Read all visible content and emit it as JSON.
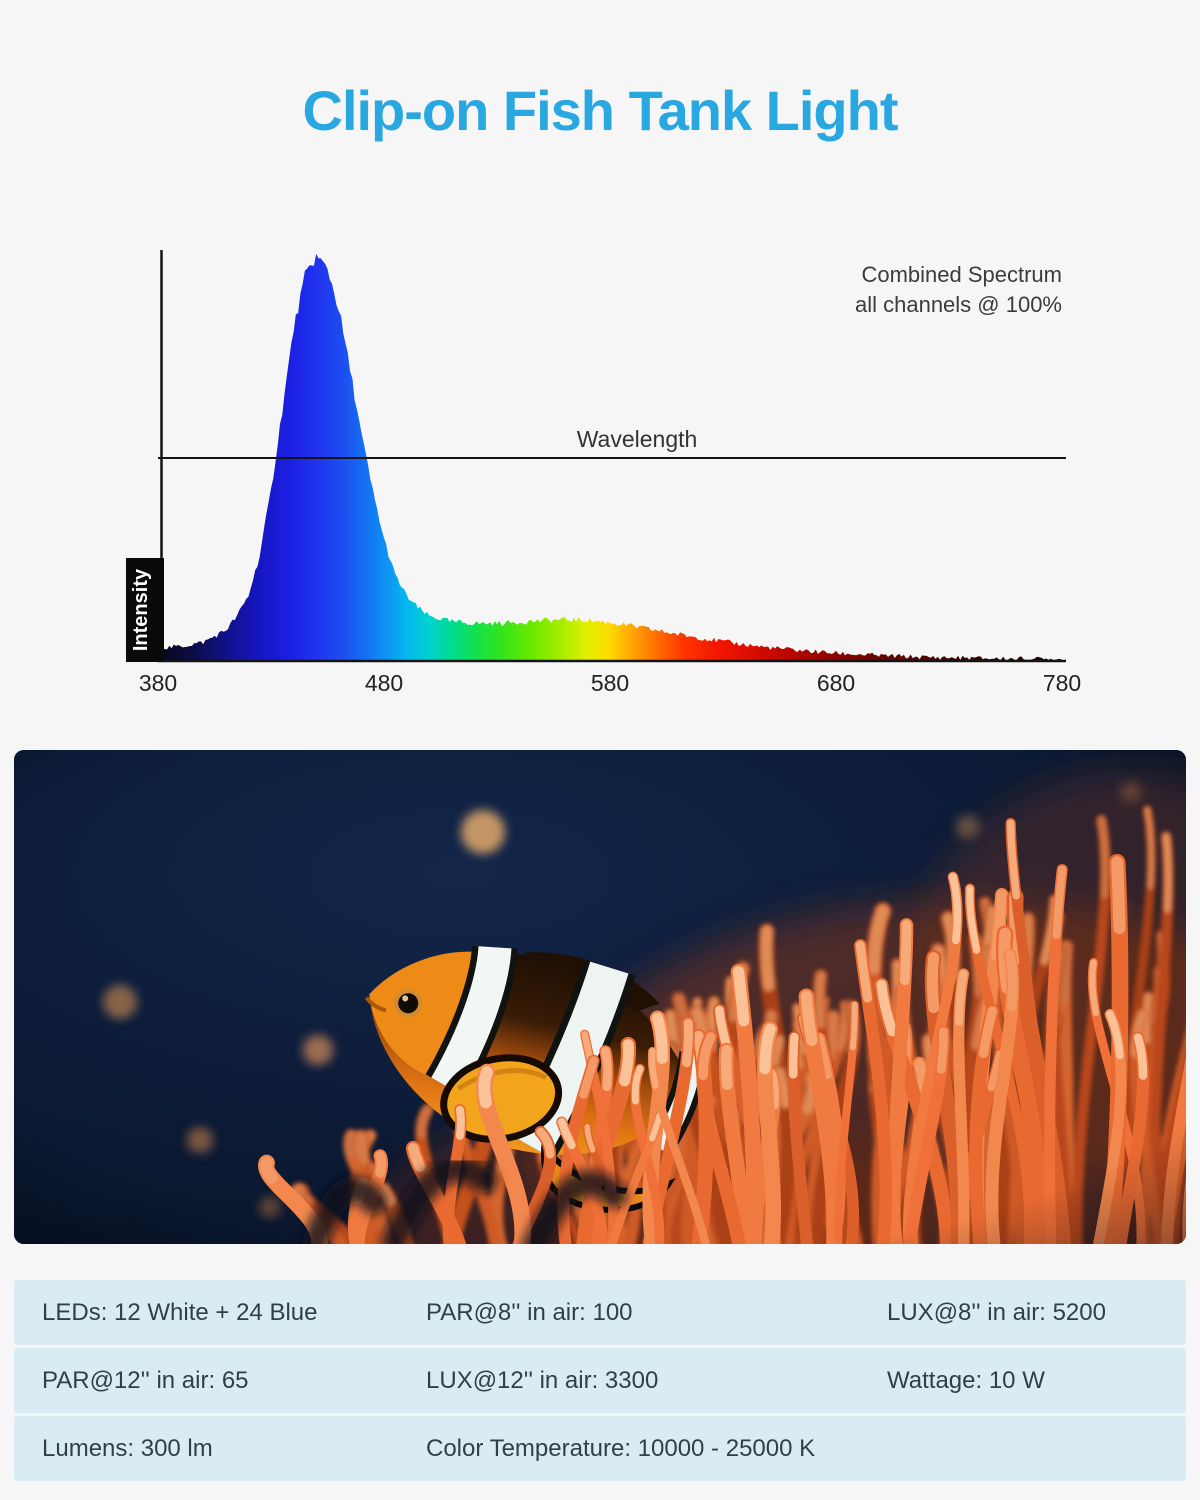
{
  "title": "Clip-on Fish Tank Light",
  "colors": {
    "accent": "#29a7e0",
    "page_bg": "#f6f6f6",
    "axis": "#141414",
    "annotation_text": "#3c3c3c",
    "spec_row_bg": "#d9ecf3",
    "spec_text": "#333e46",
    "photo_bg": "#0c1b36",
    "anemone_orange": "#ef7a41",
    "fish_orange": "#e8821c"
  },
  "chart_data": {
    "type": "area",
    "title": "Combined Spectrum all channels @ 100%",
    "annotation": {
      "line1": "Combined Spectrum",
      "line2": "all channels @ 100%"
    },
    "xlabel": "Wavelength",
    "ylabel": "Intensity",
    "x_ticks": [
      "380",
      "480",
      "580",
      "680",
      "780"
    ],
    "xlim": [
      380,
      780
    ],
    "ylim": [
      0,
      1.05
    ],
    "guide_line_intensity": 0.5,
    "grid": false,
    "legend": "none",
    "series": [
      {
        "name": "Combined spectrum, all channels @ 100%",
        "points": [
          [
            380,
            0.03
          ],
          [
            390,
            0.035
          ],
          [
            400,
            0.045
          ],
          [
            410,
            0.075
          ],
          [
            415,
            0.11
          ],
          [
            420,
            0.16
          ],
          [
            425,
            0.26
          ],
          [
            430,
            0.42
          ],
          [
            435,
            0.62
          ],
          [
            440,
            0.82
          ],
          [
            445,
            0.95
          ],
          [
            450,
            1.0
          ],
          [
            455,
            0.97
          ],
          [
            460,
            0.87
          ],
          [
            465,
            0.72
          ],
          [
            470,
            0.56
          ],
          [
            475,
            0.42
          ],
          [
            480,
            0.3
          ],
          [
            485,
            0.21
          ],
          [
            490,
            0.16
          ],
          [
            495,
            0.13
          ],
          [
            500,
            0.11
          ],
          [
            510,
            0.096
          ],
          [
            520,
            0.092
          ],
          [
            530,
            0.092
          ],
          [
            540,
            0.095
          ],
          [
            550,
            0.099
          ],
          [
            560,
            0.101
          ],
          [
            570,
            0.1
          ],
          [
            580,
            0.094
          ],
          [
            590,
            0.085
          ],
          [
            600,
            0.075
          ],
          [
            610,
            0.065
          ],
          [
            620,
            0.056
          ],
          [
            630,
            0.047
          ],
          [
            640,
            0.039
          ],
          [
            650,
            0.032
          ],
          [
            660,
            0.027
          ],
          [
            670,
            0.022
          ],
          [
            680,
            0.018
          ],
          [
            700,
            0.012
          ],
          [
            720,
            0.008
          ],
          [
            750,
            0.005
          ],
          [
            780,
            0.003
          ]
        ]
      }
    ],
    "wavelength_colors": [
      [
        380,
        "#07071d"
      ],
      [
        395,
        "#0c0c44"
      ],
      [
        410,
        "#11118a"
      ],
      [
        425,
        "#1616c2"
      ],
      [
        438,
        "#1b1fe2"
      ],
      [
        450,
        "#2032ee"
      ],
      [
        462,
        "#1c4ff0"
      ],
      [
        472,
        "#1571f2"
      ],
      [
        481,
        "#0e93f2"
      ],
      [
        490,
        "#05b7ee"
      ],
      [
        500,
        "#00d2cf"
      ],
      [
        510,
        "#00dc92"
      ],
      [
        520,
        "#12e04e"
      ],
      [
        532,
        "#32e41c"
      ],
      [
        545,
        "#69e900"
      ],
      [
        558,
        "#a5ec00"
      ],
      [
        570,
        "#e2f000"
      ],
      [
        580,
        "#ffd900"
      ],
      [
        590,
        "#ffa300"
      ],
      [
        601,
        "#ff6d00"
      ],
      [
        613,
        "#ff3400"
      ],
      [
        628,
        "#f21600"
      ],
      [
        648,
        "#cf0a00"
      ],
      [
        672,
        "#9b0500"
      ],
      [
        700,
        "#670300"
      ],
      [
        738,
        "#340100"
      ],
      [
        780,
        "#130000"
      ]
    ]
  },
  "specs": {
    "rows": [
      {
        "cells": [
          "LEDs: 12 White + 24 Blue",
          "PAR@8'' in air: 100",
          "LUX@8'' in air: 5200"
        ]
      },
      {
        "cells": [
          "PAR@12'' in air: 65",
          "LUX@12'' in air: 3300",
          "Wattage: 10 W"
        ]
      },
      {
        "cells": [
          "Lumens: 300 lm",
          "Color Temperature: 10000 - 25000 K"
        ]
      }
    ]
  }
}
